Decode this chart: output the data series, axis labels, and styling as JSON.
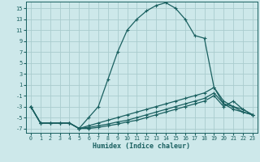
{
  "xlabel": "Humidex (Indice chaleur)",
  "bg_color": "#cde8ea",
  "grid_color": "#aaccce",
  "line_color": "#1a6060",
  "xlim": [
    -0.5,
    23.5
  ],
  "ylim": [
    -7.8,
    16.2
  ],
  "xticks": [
    0,
    1,
    2,
    3,
    4,
    5,
    6,
    7,
    8,
    9,
    10,
    11,
    12,
    13,
    14,
    15,
    16,
    17,
    18,
    19,
    20,
    21,
    22,
    23
  ],
  "yticks": [
    -7,
    -5,
    -3,
    -1,
    1,
    3,
    5,
    7,
    9,
    11,
    13,
    15
  ],
  "line1_x": [
    0,
    1,
    2,
    3,
    4,
    5,
    6,
    7,
    8,
    9,
    10,
    11,
    12,
    13,
    14,
    15,
    16,
    17,
    18,
    19,
    20,
    21,
    22,
    23
  ],
  "line1_y": [
    -3,
    -6,
    -6,
    -6,
    -6,
    -7,
    -5,
    -3,
    2,
    7,
    11,
    13,
    14.5,
    15.5,
    16,
    15,
    13,
    10,
    9.5,
    0.5,
    -2.5,
    -3,
    -4,
    -4.5
  ],
  "line2_x": [
    0,
    1,
    2,
    3,
    4,
    5,
    6,
    7,
    8,
    9,
    10,
    11,
    12,
    13,
    14,
    15,
    16,
    17,
    18,
    19,
    20,
    21,
    22,
    23
  ],
  "line2_y": [
    -3,
    -6,
    -6,
    -6,
    -6,
    -7,
    -6.5,
    -6,
    -5.5,
    -5,
    -4.5,
    -4,
    -3.5,
    -3,
    -2.5,
    -2,
    -1.5,
    -1,
    -0.5,
    0.5,
    -2,
    -3,
    -3.5,
    -4.5
  ],
  "line3_x": [
    0,
    1,
    2,
    3,
    4,
    5,
    6,
    7,
    8,
    9,
    10,
    11,
    12,
    13,
    14,
    15,
    16,
    17,
    18,
    19,
    20,
    21,
    22,
    23
  ],
  "line3_y": [
    -3,
    -6,
    -6,
    -6,
    -6,
    -7,
    -6.8,
    -6.5,
    -6.2,
    -5.8,
    -5.5,
    -5,
    -4.5,
    -4,
    -3.5,
    -3,
    -2.5,
    -2,
    -1.5,
    -0.5,
    -2.5,
    -3.5,
    -4,
    -4.5
  ],
  "line4_x": [
    0,
    1,
    2,
    3,
    4,
    5,
    6,
    7,
    8,
    9,
    10,
    11,
    12,
    13,
    14,
    15,
    16,
    17,
    18,
    19,
    20,
    21,
    22,
    23
  ],
  "line4_y": [
    -3,
    -6,
    -6,
    -6,
    -6,
    -7,
    -7,
    -6.8,
    -6.5,
    -6.2,
    -5.8,
    -5.5,
    -5,
    -4.5,
    -4,
    -3.5,
    -3,
    -2.5,
    -2,
    -1,
    -3,
    -2,
    -3.5,
    -4.5
  ]
}
